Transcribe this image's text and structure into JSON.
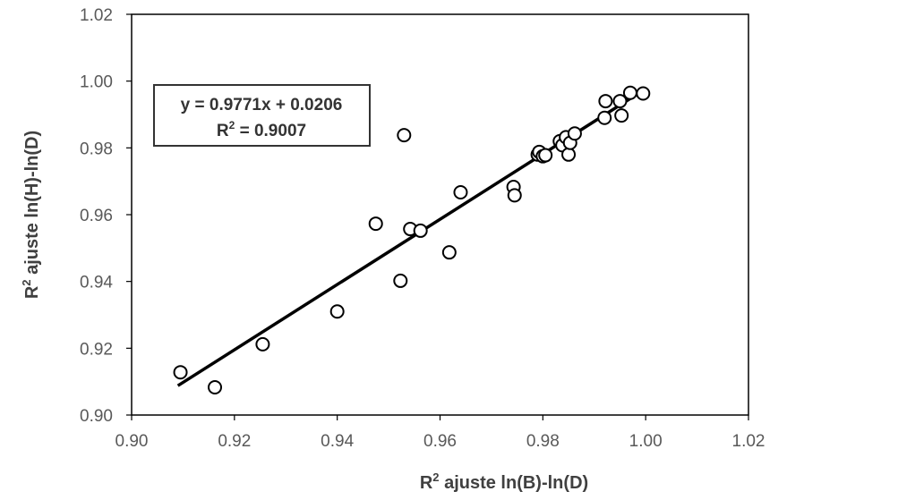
{
  "chart_data": {
    "type": "scatter",
    "title": "",
    "xlabel_main": "R",
    "xlabel_sup": "2",
    "xlabel_rest": " ajuste ln(B)-ln(D)",
    "ylabel_main": "R",
    "ylabel_sup": "2",
    "ylabel_rest": " ajuste ln(H)-ln(D)",
    "xlim": [
      0.9,
      1.02
    ],
    "ylim": [
      0.9,
      1.02
    ],
    "x_ticks": [
      "0.90",
      "0.92",
      "0.94",
      "0.96",
      "0.98",
      "1.00",
      "1.02"
    ],
    "y_ticks": [
      "0.90",
      "0.92",
      "0.94",
      "0.96",
      "0.98",
      "1.00",
      "1.02"
    ],
    "grid": false,
    "legend": "none",
    "trendline": {
      "slope": 0.9771,
      "intercept": 0.0206,
      "x_range": [
        0.909,
        1.0
      ],
      "equation_label": "y = 0.9771x + 0.0206",
      "r2_label_main": "R",
      "r2_label_sup": "2",
      "r2_label_rest": " = 0.9007",
      "label_position": "top-left"
    },
    "points": [
      {
        "x": 0.9095,
        "y": 0.9128
      },
      {
        "x": 0.9162,
        "y": 0.9083
      },
      {
        "x": 0.9255,
        "y": 0.9212
      },
      {
        "x": 0.94,
        "y": 0.931
      },
      {
        "x": 0.9475,
        "y": 0.9573
      },
      {
        "x": 0.9523,
        "y": 0.9402
      },
      {
        "x": 0.953,
        "y": 0.9838
      },
      {
        "x": 0.9542,
        "y": 0.9557
      },
      {
        "x": 0.9562,
        "y": 0.9552
      },
      {
        "x": 0.9618,
        "y": 0.9487
      },
      {
        "x": 0.964,
        "y": 0.9667
      },
      {
        "x": 0.9743,
        "y": 0.9683
      },
      {
        "x": 0.9745,
        "y": 0.9658
      },
      {
        "x": 0.979,
        "y": 0.978
      },
      {
        "x": 0.9793,
        "y": 0.9788
      },
      {
        "x": 0.98,
        "y": 0.9775
      },
      {
        "x": 0.9805,
        "y": 0.9778
      },
      {
        "x": 0.9833,
        "y": 0.982
      },
      {
        "x": 0.9838,
        "y": 0.9808
      },
      {
        "x": 0.9845,
        "y": 0.9832
      },
      {
        "x": 0.985,
        "y": 0.978
      },
      {
        "x": 0.9853,
        "y": 0.9815
      },
      {
        "x": 0.9862,
        "y": 0.9843
      },
      {
        "x": 0.992,
        "y": 0.989
      },
      {
        "x": 0.9922,
        "y": 0.994
      },
      {
        "x": 0.995,
        "y": 0.994
      },
      {
        "x": 0.9953,
        "y": 0.9897
      },
      {
        "x": 0.997,
        "y": 0.9965
      },
      {
        "x": 0.9995,
        "y": 0.9963
      }
    ]
  }
}
